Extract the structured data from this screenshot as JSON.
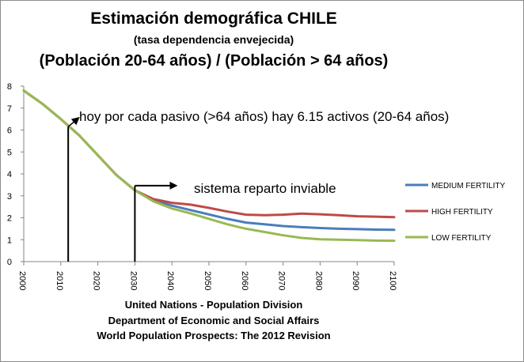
{
  "title_line1": "Estimación demográfica CHILE",
  "title_line2": "(tasa dependencia envejecida)",
  "title_line3": "(Población 20-64 años) / (Población > 64 años)",
  "annotation_today": "hoy por cada pasivo (>64 años) hay 6.15 activos (20-64 años)",
  "annotation_system": "sistema reparto inviable",
  "source_lines": [
    "United Nations - Population Division",
    "Department of Economic and Social Affairs",
    "World Population Prospects: The 2012 Revision"
  ],
  "colors": {
    "medium": "#4a7ebb",
    "high": "#be4b48",
    "low": "#98b954",
    "axis": "#868686",
    "annotation": "#000000"
  },
  "chart_data": {
    "type": "line",
    "x_ticks": [
      2000,
      2010,
      2020,
      2030,
      2040,
      2050,
      2060,
      2070,
      2080,
      2090,
      2100
    ],
    "y_ticks": [
      0,
      1,
      2,
      3,
      4,
      5,
      6,
      7,
      8
    ],
    "xlim": [
      2000,
      2100
    ],
    "ylim": [
      0,
      8
    ],
    "grid": false,
    "legend_position": "right",
    "annotation_points": [
      {
        "x": 2012,
        "y": 6.15,
        "label_key": "annotation_today"
      },
      {
        "x": 2030,
        "y": 3.25,
        "label_key": "annotation_system"
      }
    ],
    "series": [
      {
        "name": "MEDIUM FERTILITY",
        "color_key": "medium",
        "x": [
          2000,
          2005,
          2010,
          2015,
          2020,
          2025,
          2030,
          2035,
          2040,
          2045,
          2050,
          2055,
          2060,
          2065,
          2070,
          2075,
          2080,
          2085,
          2090,
          2095,
          2100
        ],
        "values": [
          7.8,
          7.2,
          6.5,
          5.75,
          4.85,
          3.95,
          3.25,
          2.8,
          2.55,
          2.35,
          2.15,
          1.95,
          1.78,
          1.7,
          1.62,
          1.57,
          1.53,
          1.5,
          1.48,
          1.46,
          1.45
        ]
      },
      {
        "name": "HIGH FERTILITY",
        "color_key": "high",
        "x": [
          2000,
          2005,
          2010,
          2015,
          2020,
          2025,
          2030,
          2035,
          2040,
          2045,
          2050,
          2055,
          2060,
          2065,
          2070,
          2075,
          2080,
          2085,
          2090,
          2095,
          2100
        ],
        "values": [
          7.8,
          7.2,
          6.5,
          5.75,
          4.85,
          3.95,
          3.25,
          2.85,
          2.68,
          2.6,
          2.45,
          2.28,
          2.14,
          2.12,
          2.14,
          2.19,
          2.16,
          2.12,
          2.07,
          2.05,
          2.03
        ]
      },
      {
        "name": "LOW FERTILITY",
        "color_key": "low",
        "x": [
          2000,
          2005,
          2010,
          2015,
          2020,
          2025,
          2030,
          2035,
          2040,
          2045,
          2050,
          2055,
          2060,
          2065,
          2070,
          2075,
          2080,
          2085,
          2090,
          2095,
          2100
        ],
        "values": [
          7.8,
          7.2,
          6.5,
          5.75,
          4.85,
          3.95,
          3.25,
          2.75,
          2.42,
          2.2,
          1.95,
          1.7,
          1.5,
          1.35,
          1.2,
          1.08,
          1.02,
          1.0,
          0.98,
          0.96,
          0.95
        ]
      }
    ]
  }
}
